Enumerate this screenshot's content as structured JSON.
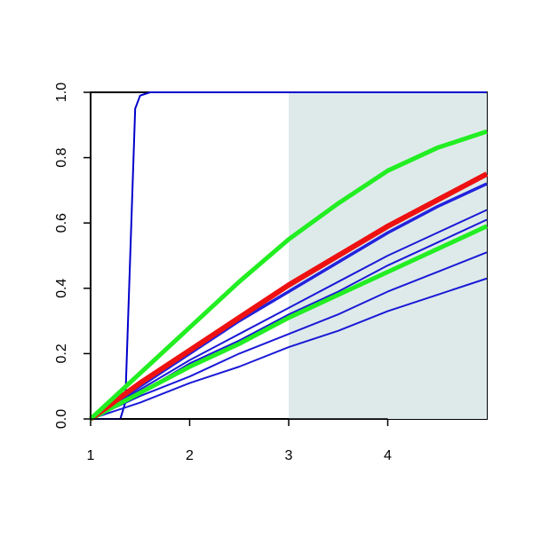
{
  "chart_data": {
    "type": "line",
    "x": [
      1,
      1.5,
      2,
      2.5,
      3,
      3.5,
      4,
      4.5,
      5
    ],
    "xlim": [
      1,
      5
    ],
    "xticks": [
      1,
      2,
      3,
      4
    ],
    "ylim": [
      0,
      1
    ],
    "yticks": [
      {
        "value": 0,
        "label": "0.0"
      },
      {
        "value": 0.2,
        "label": "0.2"
      },
      {
        "value": 0.4,
        "label": "0.4"
      },
      {
        "value": 0.6,
        "label": "0.6"
      },
      {
        "value": 0.8,
        "label": "0.8"
      },
      {
        "value": 1,
        "label": "1.0"
      }
    ],
    "shaded_region": [
      3,
      5
    ],
    "shade_color": "#deeaea",
    "series": [
      {
        "color": "#0000cc",
        "width": 2,
        "x": [
          1,
          1.3,
          1.35,
          1.4,
          1.45,
          1.5,
          1.6,
          2,
          3,
          4,
          5
        ],
        "values": [
          0,
          0,
          0.05,
          0.5,
          0.95,
          0.99,
          1,
          1,
          1,
          1,
          1
        ]
      },
      {
        "color": "#1a1ad6",
        "width": 2,
        "values": [
          0,
          0.05,
          0.11,
          0.16,
          0.22,
          0.27,
          0.33,
          0.38,
          0.43
        ]
      },
      {
        "color": "#1a1ad6",
        "width": 2,
        "values": [
          0,
          0.07,
          0.13,
          0.2,
          0.26,
          0.32,
          0.39,
          0.45,
          0.51
        ]
      },
      {
        "color": "#1a1ad6",
        "width": 2,
        "values": [
          0,
          0.08,
          0.17,
          0.24,
          0.32,
          0.39,
          0.47,
          0.54,
          0.61
        ]
      },
      {
        "color": "#1a1ad6",
        "width": 2,
        "values": [
          0,
          0.09,
          0.18,
          0.26,
          0.34,
          0.42,
          0.5,
          0.57,
          0.64
        ]
      },
      {
        "color": "#2222dd",
        "width": 3.5,
        "values": [
          0,
          0.1,
          0.2,
          0.3,
          0.39,
          0.48,
          0.57,
          0.65,
          0.72
        ]
      },
      {
        "color": "#22ee22",
        "width": 5,
        "values": [
          0,
          0.08,
          0.16,
          0.23,
          0.31,
          0.38,
          0.45,
          0.52,
          0.59
        ]
      },
      {
        "color": "#ee1111",
        "width": 6,
        "values": [
          0,
          0.11,
          0.21,
          0.31,
          0.41,
          0.5,
          0.59,
          0.67,
          0.75
        ]
      },
      {
        "color": "#22ee22",
        "width": 5,
        "values": [
          0,
          0.14,
          0.28,
          0.42,
          0.55,
          0.66,
          0.76,
          0.83,
          0.88
        ]
      }
    ]
  }
}
